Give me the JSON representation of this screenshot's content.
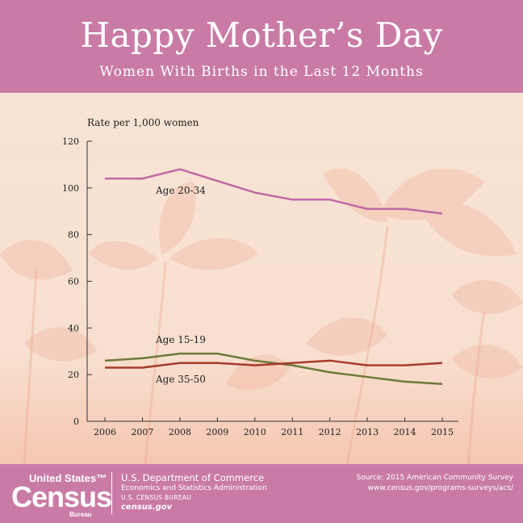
{
  "header": {
    "title": "Happy Mother’s Day",
    "subtitle": "Women With Births in the Last 12 Months"
  },
  "chart_data": {
    "type": "line",
    "ylabel": "Rate per 1,000 women",
    "xlabel": "",
    "ylim": [
      0,
      120
    ],
    "yticks": [
      0,
      20,
      40,
      60,
      80,
      100,
      120
    ],
    "categories": [
      "2006",
      "2007",
      "2008",
      "2009",
      "2010",
      "2011",
      "2012",
      "2013",
      "2014",
      "2015"
    ],
    "series": [
      {
        "name": "Age 20-34",
        "color": "#c06aa5",
        "values": [
          104,
          104,
          108,
          103,
          98,
          95,
          95,
          91,
          91,
          89
        ]
      },
      {
        "name": "Age 15-19",
        "color": "#6d7a3a",
        "values": [
          26,
          27,
          29,
          29,
          26,
          24,
          21,
          19,
          17,
          16
        ]
      },
      {
        "name": "Age 35-50",
        "color": "#a63c2c",
        "values": [
          23,
          23,
          25,
          25,
          24,
          25,
          26,
          24,
          24,
          25
        ]
      }
    ],
    "grid": false
  },
  "footer": {
    "logo": {
      "line1": "United States™",
      "line2": "Census",
      "line3": "Bureau"
    },
    "dept_line1": "U.S. Department of Commerce",
    "dept_line2": "Economics and Statistics Administration",
    "dept_line3": "U.S. CENSUS BUREAU",
    "dept_line4": "census.gov",
    "source_line1": "Source: 2015 American Community Survey",
    "source_line2": "www.census.gov/programs-surveys/acs/"
  },
  "colors": {
    "banner": "#c97ba6",
    "background": "#f7e3d4",
    "axis": "#333333"
  }
}
